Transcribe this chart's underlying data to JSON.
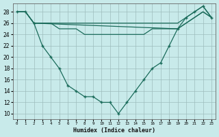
{
  "xlabel": "Humidex (Indice chaleur)",
  "x": [
    0,
    1,
    2,
    3,
    4,
    5,
    6,
    7,
    8,
    9,
    10,
    11,
    12,
    13,
    14,
    15,
    16,
    17,
    18,
    19,
    20,
    21,
    22,
    23
  ],
  "main_y": [
    28,
    28,
    26,
    22,
    20,
    18,
    15,
    14,
    13,
    13,
    12,
    12,
    10,
    12,
    14,
    16,
    18,
    19,
    22,
    25,
    27,
    28,
    29,
    27
  ],
  "upper_y": [
    28,
    28,
    26,
    26,
    26,
    26,
    26,
    26,
    26,
    26,
    26,
    26,
    26,
    26,
    26,
    26,
    26,
    26,
    26,
    26,
    27,
    28,
    29,
    27
  ],
  "mid_y": [
    28,
    28,
    26,
    26,
    26,
    25,
    25,
    25,
    24,
    24,
    24,
    24,
    24,
    24,
    24,
    24,
    25,
    25,
    25,
    25,
    26,
    27,
    28,
    27
  ],
  "lower_y": [
    28,
    28,
    26,
    null,
    null,
    null,
    null,
    null,
    null,
    null,
    null,
    null,
    null,
    null,
    null,
    null,
    null,
    null,
    null,
    25,
    26,
    27,
    28,
    27
  ],
  "line_color": "#1a6b5a",
  "bg_color": "#c8eaea",
  "yticks": [
    10,
    12,
    14,
    16,
    18,
    20,
    22,
    24,
    26,
    28
  ],
  "ylim_min": 9,
  "ylim_max": 29.5
}
